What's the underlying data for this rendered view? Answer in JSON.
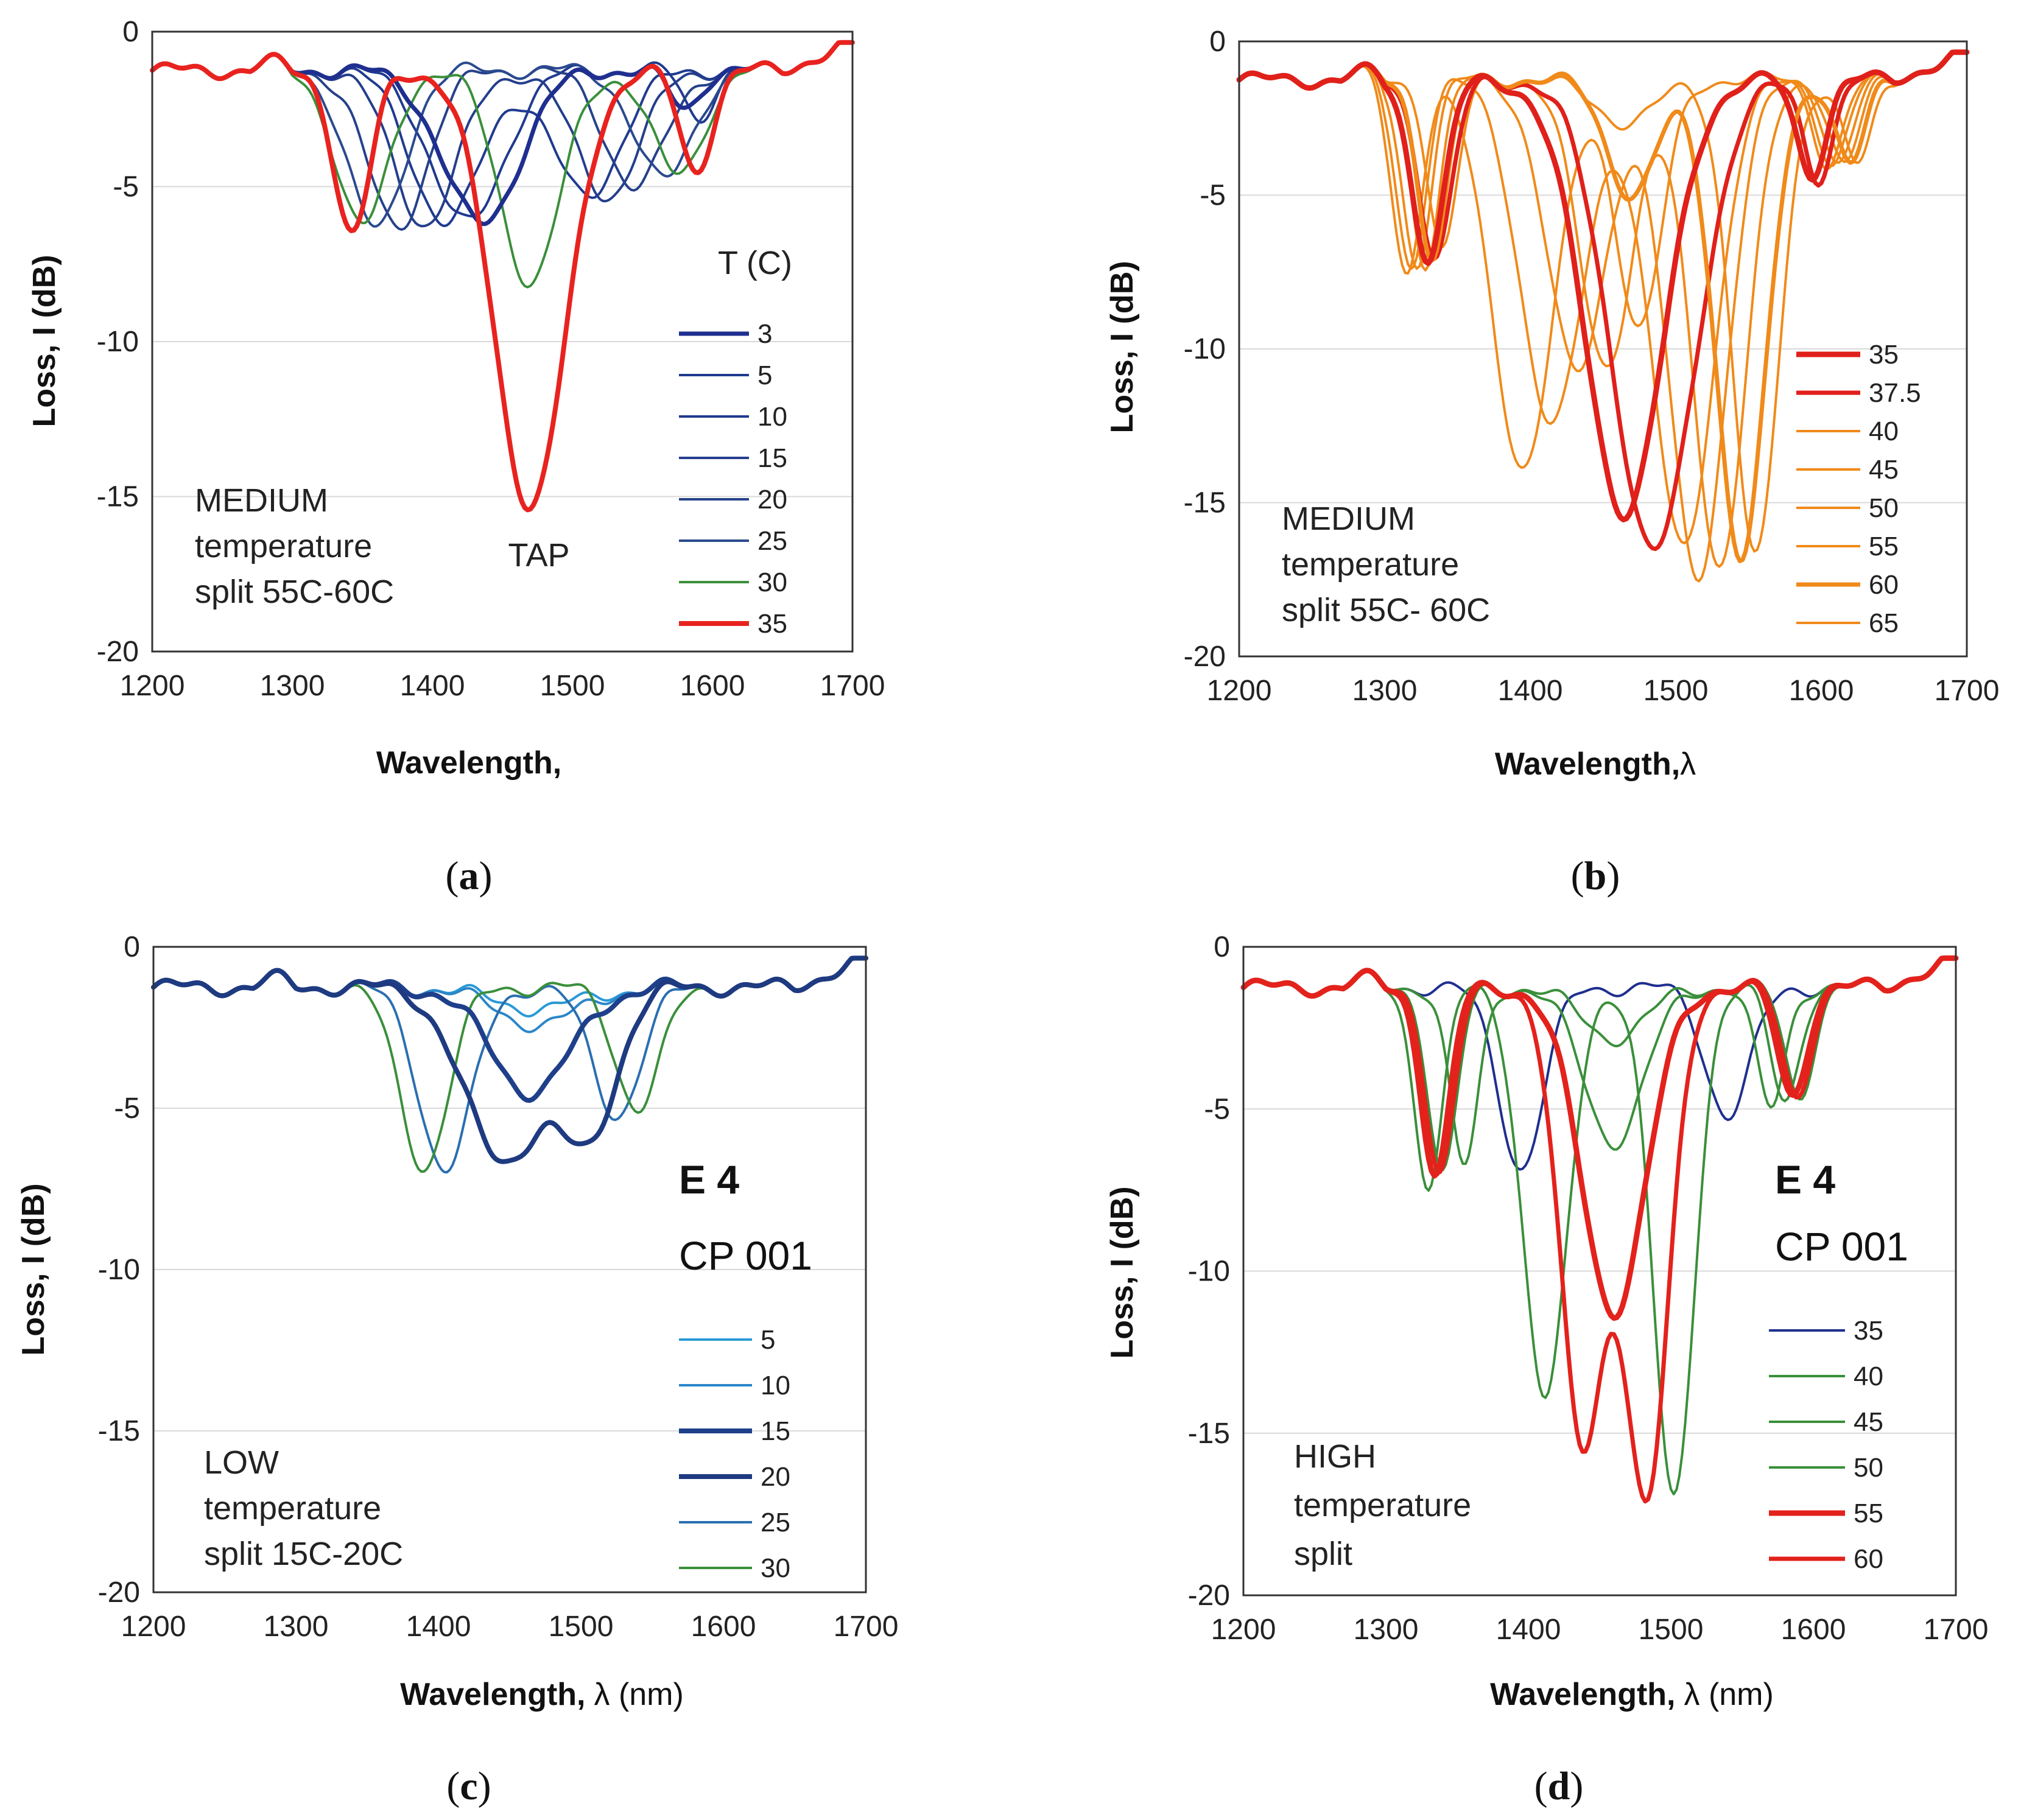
{
  "figure": {
    "panel_captions": [
      {
        "open": "(",
        "letter": "a",
        "close": ")"
      },
      {
        "open": "(",
        "letter": "b",
        "close": ")"
      },
      {
        "open": "(",
        "letter": "c",
        "close": ")"
      },
      {
        "open": "(",
        "letter": "d",
        "close": ")"
      }
    ]
  },
  "chart_data": [
    {
      "panel": "a",
      "type": "line",
      "xlabel": "Wavelength,",
      "xlabel_suffix": "",
      "ylabel": "Loss, I (dB)",
      "xlim": [
        1200,
        1700
      ],
      "ylim": [
        -20,
        0
      ],
      "x_ticks": [
        1200,
        1300,
        1400,
        1500,
        1600,
        1700
      ],
      "y_ticks": [
        0,
        -5,
        -10,
        -15,
        -20
      ],
      "y_tick_labels": [
        "0",
        "-5",
        "-10",
        "-15",
        "-20"
      ],
      "grid": true,
      "legend_title": "T (C)",
      "legend_position": "right",
      "annotations": [
        "MEDIUM",
        "temperature",
        "split 55C-60C"
      ],
      "peak_label": "TAP",
      "series": [
        {
          "name": "3",
          "color": "#1f2f8f",
          "width": 7,
          "dips": [
            [
              1435,
              -6.2,
              38
            ],
            [
              1580,
              -2.5,
              15
            ]
          ]
        },
        {
          "name": "5",
          "color": "#1f3a8f",
          "width": 4,
          "dips": [
            [
              1425,
              -6.2,
              36
            ],
            [
              1590,
              -2.8,
              14
            ]
          ]
        },
        {
          "name": "10",
          "color": "#1f3a8f",
          "width": 4,
          "dips": [
            [
              1410,
              -6.2,
              34
            ],
            [
              1510,
              -5.3,
              34
            ]
          ]
        },
        {
          "name": "15",
          "color": "#243e8c",
          "width": 4,
          "dips": [
            [
              1395,
              -6.2,
              32
            ],
            [
              1525,
              -5.3,
              32
            ]
          ]
        },
        {
          "name": "20",
          "color": "#26418a",
          "width": 4,
          "dips": [
            [
              1375,
              -6.3,
              30
            ],
            [
              1545,
              -5.0,
              30
            ]
          ]
        },
        {
          "name": "25",
          "color": "#2a4a8f",
          "width": 4,
          "dips": [
            [
              1360,
              -6.4,
              28
            ],
            [
              1565,
              -4.8,
              28
            ]
          ]
        },
        {
          "name": "30",
          "color": "#3a8f3a",
          "width": 4,
          "dips": [
            [
              1350,
              -6.3,
              26
            ],
            [
              1470,
              -8.1,
              30
            ],
            [
              1575,
              -4.6,
              26
            ]
          ]
        },
        {
          "name": "35",
          "color": "#e8231f",
          "width": 8,
          "dips": [
            [
              1343,
              -6.6,
              18
            ],
            [
              1470,
              -15.3,
              36
            ],
            [
              1588,
              -4.5,
              16
            ]
          ]
        }
      ]
    },
    {
      "panel": "b",
      "type": "line",
      "xlabel": "Wavelength,",
      "xlabel_suffix": "λ",
      "ylabel": "Loss, I (dB)",
      "xlim": [
        1200,
        1700
      ],
      "ylim": [
        -20,
        0
      ],
      "x_ticks": [
        1200,
        1300,
        1400,
        1500,
        1600,
        1700
      ],
      "y_ticks": [
        0,
        -5,
        -10,
        -15,
        -20
      ],
      "y_tick_labels": [
        "0",
        "-5",
        "-10",
        "-15",
        "-20"
      ],
      "grid": true,
      "legend_title": "",
      "legend_position": "right",
      "annotations": [
        "MEDIUM",
        "temperature",
        "split 55C- 60C"
      ],
      "peak_label": "",
      "series": [
        {
          "name": "35",
          "color": "#e0201a",
          "width": 9,
          "dips": [
            [
              1330,
              -7.0,
              16
            ],
            [
              1465,
              -15.3,
              38
            ],
            [
              1593,
              -4.3,
              14
            ]
          ]
        },
        {
          "name": "37.5",
          "color": "#e0201a",
          "width": 7,
          "dips": [
            [
              1335,
              -7.0,
              16
            ],
            [
              1485,
              -16.6,
              40
            ],
            [
              1598,
              -4.4,
              14
            ]
          ]
        },
        {
          "name": "40",
          "color": "#f08a1a",
          "width": 4,
          "dips": [
            [
              1315,
              -7.5,
              14
            ],
            [
              1395,
              -13.8,
              30
            ],
            [
              1475,
              -9.3,
              22
            ],
            [
              1605,
              -4.0,
              14
            ]
          ]
        },
        {
          "name": "45",
          "color": "#f08a1a",
          "width": 4,
          "dips": [
            [
              1318,
              -7.3,
              14
            ],
            [
              1415,
              -12.5,
              30
            ],
            [
              1505,
              -16.5,
              30
            ],
            [
              1608,
              -4.0,
              14
            ]
          ]
        },
        {
          "name": "50",
          "color": "#f08a1a",
          "width": 4,
          "dips": [
            [
              1322,
              -7.2,
              14
            ],
            [
              1432,
              -10.8,
              28
            ],
            [
              1515,
              -17.4,
              28
            ],
            [
              1612,
              -4.0,
              14
            ]
          ]
        },
        {
          "name": "55",
          "color": "#f08a1a",
          "width": 4,
          "dips": [
            [
              1328,
              -7.2,
              14
            ],
            [
              1452,
              -10.5,
              26
            ],
            [
              1530,
              -17.0,
              26
            ],
            [
              1616,
              -4.0,
              14
            ]
          ]
        },
        {
          "name": "60",
          "color": "#f08a1a",
          "width": 7,
          "dips": [
            [
              1333,
              -7.0,
              14
            ],
            [
              1470,
              -5.0,
              24
            ],
            [
              1545,
              -16.8,
              24
            ],
            [
              1620,
              -4.0,
              14
            ]
          ]
        },
        {
          "name": "65",
          "color": "#f08a1a",
          "width": 4,
          "dips": [
            [
              1340,
              -6.8,
              14
            ],
            [
              1465,
              -2.6,
              30
            ],
            [
              1555,
              -16.8,
              22
            ],
            [
              1625,
              -4.0,
              14
            ]
          ]
        }
      ]
    },
    {
      "panel": "c",
      "type": "line",
      "xlabel": "Wavelength,",
      "xlabel_suffix": "λ (nm)",
      "ylabel": "Loss, I (dB)",
      "xlim": [
        1200,
        1700
      ],
      "ylim": [
        -20,
        0
      ],
      "x_ticks": [
        1200,
        1300,
        1400,
        1500,
        1600,
        1700
      ],
      "y_ticks": [
        0,
        -5,
        -10,
        -15,
        -20
      ],
      "y_tick_labels": [
        "0",
        "-5",
        "-10",
        "-15",
        "-20"
      ],
      "grid": true,
      "legend_title": "",
      "legend_position": "right",
      "annotations": [
        "LOW",
        "temperature",
        "split 15C-20C"
      ],
      "label_top": "E 4",
      "label_bottom": "CP 001",
      "series": [
        {
          "name": "5",
          "color": "#2a9ad6",
          "width": 4,
          "dips": [
            [
              1470,
              -1.9,
              45
            ]
          ]
        },
        {
          "name": "10",
          "color": "#2a86c8",
          "width": 4,
          "dips": [
            [
              1470,
              -2.4,
              42
            ]
          ]
        },
        {
          "name": "15",
          "color": "#1e3f8a",
          "width": 8,
          "dips": [
            [
              1465,
              -4.5,
              40
            ]
          ]
        },
        {
          "name": "20",
          "color": "#1e3a80",
          "width": 8,
          "dips": [
            [
              1445,
              -6.6,
              38
            ],
            [
              1505,
              -5.8,
              28
            ]
          ]
        },
        {
          "name": "25",
          "color": "#2a6fb0",
          "width": 4,
          "dips": [
            [
              1405,
              -6.9,
              26
            ],
            [
              1525,
              -5.2,
              24
            ]
          ]
        },
        {
          "name": "30",
          "color": "#3a8f3a",
          "width": 4,
          "dips": [
            [
              1390,
              -6.8,
              24
            ],
            [
              1540,
              -5.0,
              22
            ]
          ]
        }
      ]
    },
    {
      "panel": "d",
      "type": "line",
      "xlabel": "Wavelength,",
      "xlabel_suffix": "λ (nm)",
      "ylabel": "Loss, I (dB)",
      "xlim": [
        1200,
        1700
      ],
      "ylim": [
        -20,
        0
      ],
      "x_ticks": [
        1200,
        1300,
        1400,
        1500,
        1600,
        1700
      ],
      "y_ticks": [
        0,
        -5,
        -10,
        -15,
        -20
      ],
      "y_tick_labels": [
        "0",
        "-5",
        "-10",
        "-15",
        "-20"
      ],
      "grid": true,
      "legend_title": "",
      "legend_position": "right",
      "annotations": [
        "HIGH",
        "temperature",
        "split"
      ],
      "label_top": "E 4",
      "label_bottom": "CP 001",
      "series": [
        {
          "name": "35",
          "color": "#1f2f8f",
          "width": 4,
          "dips": [
            [
              1395,
              -6.8,
              22
            ],
            [
              1540,
              -5.2,
              22
            ]
          ]
        },
        {
          "name": "40",
          "color": "#3a8f3a",
          "width": 4,
          "dips": [
            [
              1330,
              -7.3,
              14
            ],
            [
              1412,
              -13.9,
              22
            ],
            [
              1502,
              -17.1,
              20
            ],
            [
              1590,
              -4.6,
              14
            ]
          ]
        },
        {
          "name": "45",
          "color": "#3a8f3a",
          "width": 4,
          "dips": [
            [
              1340,
              -7.0,
              14
            ],
            [
              1460,
              -6.0,
              30
            ],
            [
              1580,
              -4.8,
              14
            ]
          ]
        },
        {
          "name": "50",
          "color": "#3a8f3a",
          "width": 4,
          "dips": [
            [
              1355,
              -6.8,
              14
            ],
            [
              1460,
              -2.8,
              32
            ],
            [
              1570,
              -5.0,
              14
            ]
          ]
        },
        {
          "name": "55",
          "color": "#e3221c",
          "width": 9,
          "dips": [
            [
              1335,
              -7.0,
              14
            ],
            [
              1460,
              -11.2,
              32
            ],
            [
              1585,
              -4.6,
              14
            ]
          ]
        },
        {
          "name": "60",
          "color": "#e3221c",
          "width": 7,
          "dips": [
            [
              1338,
              -7.0,
              14
            ],
            [
              1438,
              -15.3,
              22
            ],
            [
              1483,
              -17.0,
              22
            ],
            [
              1588,
              -4.6,
              14
            ]
          ]
        }
      ]
    }
  ]
}
